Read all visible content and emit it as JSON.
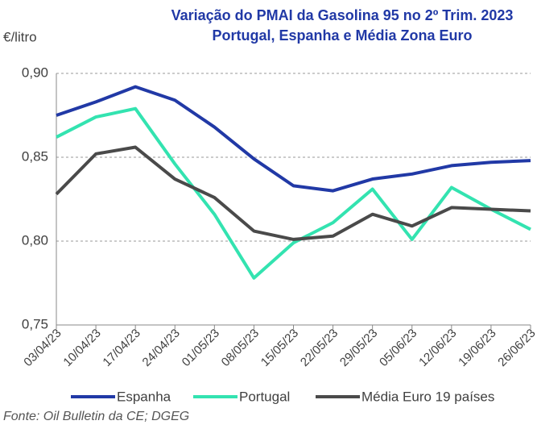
{
  "chart_data": {
    "type": "line",
    "title": "Variação do PMAI da Gasolina 95 no 2º Trim. 2023",
    "subtitle": "Portugal, Espanha e Média Zona Euro",
    "y_label": "€/litro",
    "source": "Fonte: Oil Bulletin da CE; DGEG",
    "categories": [
      "03/04/23",
      "10/04/23",
      "17/04/23",
      "24/04/23",
      "01/05/23",
      "08/05/23",
      "15/05/23",
      "22/05/23",
      "29/05/23",
      "05/06/23",
      "12/06/23",
      "19/06/23",
      "26/06/23"
    ],
    "series": [
      {
        "name": "Espanha",
        "color": "#2139a6",
        "values": [
          0.875,
          0.883,
          0.892,
          0.884,
          0.868,
          0.849,
          0.833,
          0.83,
          0.837,
          0.84,
          0.845,
          0.847,
          0.848
        ]
      },
      {
        "name": "Portugal",
        "color": "#33e3b0",
        "values": [
          0.862,
          0.874,
          0.879,
          0.846,
          0.816,
          0.778,
          0.799,
          0.811,
          0.831,
          0.801,
          0.832,
          0.819,
          0.807
        ]
      },
      {
        "name": "Média Euro 19 países",
        "color": "#4a4a4a",
        "values": [
          0.828,
          0.852,
          0.856,
          0.837,
          0.826,
          0.806,
          0.801,
          0.803,
          0.816,
          0.809,
          0.82,
          0.819,
          0.818
        ]
      }
    ],
    "ylim": [
      0.75,
      0.9
    ],
    "yticks": [
      {
        "value": 0.75,
        "label": "0,75"
      },
      {
        "value": 0.8,
        "label": "0,80"
      },
      {
        "value": 0.85,
        "label": "0,85"
      },
      {
        "value": 0.9,
        "label": "0,90"
      }
    ],
    "grid": true,
    "legend": "bottom"
  }
}
